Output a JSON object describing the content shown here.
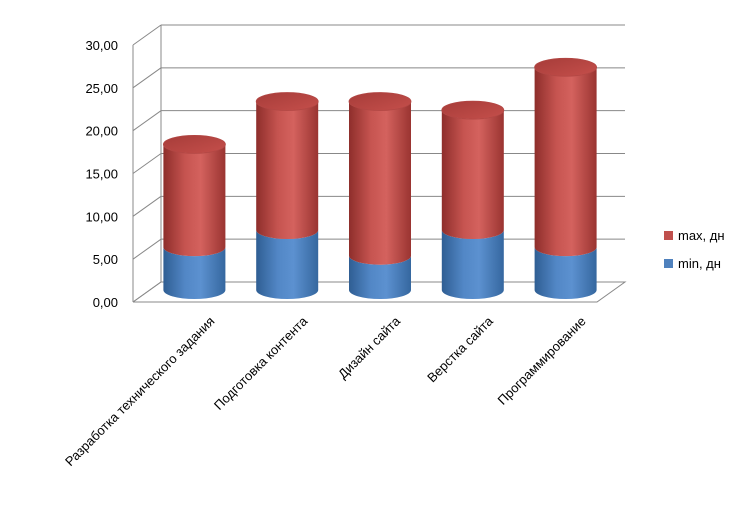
{
  "chart_data": {
    "type": "bar",
    "style": "3d-stacked-cylinder",
    "categories": [
      "Разработка технического задания",
      "Подготовка контента",
      "Дизайн сайта",
      "Верстка сайта",
      "Программирование"
    ],
    "series": [
      {
        "name": "min, дн",
        "values": [
          5,
          7,
          4,
          7,
          5
        ],
        "color": "#4f81bd"
      },
      {
        "name": "max, дн",
        "values": [
          12,
          15,
          18,
          14,
          21
        ],
        "color": "#c0504d"
      }
    ],
    "yticks": [
      "0,00",
      "5,00",
      "10,00",
      "15,00",
      "20,00",
      "25,00",
      "30,00"
    ],
    "ylim": [
      0,
      30
    ],
    "grid": true,
    "legend_position": "right"
  }
}
